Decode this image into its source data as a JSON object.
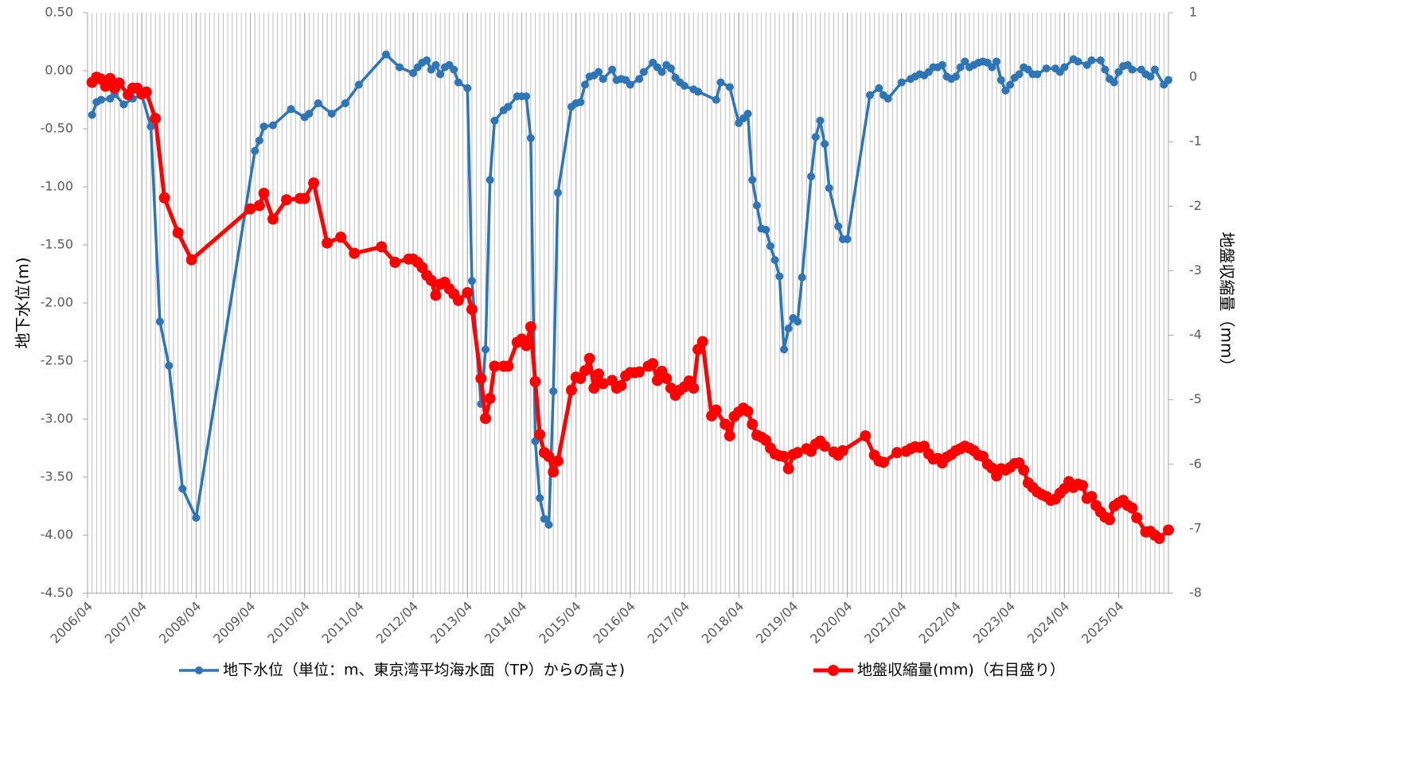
{
  "chart_data": {
    "type": "line",
    "y_label": "地下水位(m)",
    "y2_label": "地盤収縮量（mm）",
    "xlim": [
      "2006/04",
      "2026/03"
    ],
    "xticks": [
      "2006/04",
      "2007/04",
      "2008/04",
      "2009/04",
      "2010/04",
      "2011/04",
      "2012/04",
      "2013/04",
      "2014/04",
      "2015/04",
      "2016/04",
      "2017/04",
      "2018/04",
      "2019/04",
      "2020/04",
      "2021/04",
      "2022/04",
      "2023/04",
      "2024/04",
      "2025/04"
    ],
    "ylim": [
      -4.5,
      0.5
    ],
    "yticks": [
      {
        "value": 0.5,
        "label": "0.50"
      },
      {
        "value": 0,
        "label": "0.00"
      },
      {
        "value": -0.5,
        "label": "-0.50"
      },
      {
        "value": -1,
        "label": "-1.00"
      },
      {
        "value": -1.5,
        "label": "-1.50"
      },
      {
        "value": -2,
        "label": "-2.00"
      },
      {
        "value": -2.5,
        "label": "-2.50"
      },
      {
        "value": -3,
        "label": "-3.00"
      },
      {
        "value": -3.5,
        "label": "-3.50"
      },
      {
        "value": -4,
        "label": "-4.00"
      },
      {
        "value": -4.5,
        "label": "-4.50"
      }
    ],
    "y2lim": [
      -8,
      1
    ],
    "y2ticks": [
      1,
      0,
      -1,
      -2,
      -3,
      -4,
      -5,
      -6,
      -7,
      -8
    ],
    "grid": true,
    "legend": "bottom",
    "series": [
      {
        "name": "地下水位（単位：m、東京湾平均海水面（TP）からの高さ)",
        "color": "#2e75b6",
        "x": [
          "2006/05",
          "2006/06",
          "2006/07",
          "2006/09",
          "2006/10",
          "2006/12",
          "2007/02",
          "2007/04",
          "2007/06",
          "2007/08",
          "2007/10",
          "2008/01",
          "2008/04",
          "2009/05",
          "2009/06",
          "2009/07",
          "2009/09",
          "2010/01",
          "2010/04",
          "2010/05",
          "2010/07",
          "2010/10",
          "2011/01",
          "2011/04",
          "2011/10",
          "2012/01",
          "2012/04",
          "2012/05",
          "2012/06",
          "2012/07",
          "2012/08",
          "2012/09",
          "2012/10",
          "2012/11",
          "2012/12",
          "2013/01",
          "2013/02",
          "2013/04",
          "2013/05",
          "2013/07",
          "2013/08",
          "2013/09",
          "2013/10",
          "2013/12",
          "2014/01",
          "2014/03",
          "2014/04",
          "2014/05",
          "2014/06",
          "2014/07",
          "2014/08",
          "2014/09",
          "2014/10",
          "2014/11",
          "2014/12",
          "2015/03",
          "2015/04",
          "2015/05",
          "2015/06",
          "2015/07",
          "2015/08",
          "2015/09",
          "2015/10",
          "2015/12",
          "2016/01",
          "2016/02",
          "2016/03",
          "2016/04",
          "2016/06",
          "2016/07",
          "2016/09",
          "2016/10",
          "2016/11",
          "2016/12",
          "2017/01",
          "2017/02",
          "2017/03",
          "2017/04",
          "2017/06",
          "2017/07",
          "2017/11",
          "2017/12",
          "2018/02",
          "2018/04",
          "2018/05",
          "2018/06",
          "2018/07",
          "2018/08",
          "2018/09",
          "2018/10",
          "2018/11",
          "2018/12",
          "2019/01",
          "2019/02",
          "2019/03",
          "2019/04",
          "2019/05",
          "2019/06",
          "2019/08",
          "2019/09",
          "2019/10",
          "2019/11",
          "2019/12",
          "2020/02",
          "2020/03",
          "2020/04",
          "2020/09",
          "2020/11",
          "2020/12",
          "2021/01",
          "2021/04",
          "2021/06",
          "2021/07",
          "2021/08",
          "2021/09",
          "2021/10",
          "2021/11",
          "2021/12",
          "2022/01",
          "2022/02",
          "2022/03",
          "2022/04",
          "2022/05",
          "2022/06",
          "2022/07",
          "2022/08",
          "2022/09",
          "2022/10",
          "2022/11",
          "2022/12",
          "2023/01",
          "2023/02",
          "2023/03",
          "2023/04",
          "2023/05",
          "2023/06",
          "2023/07",
          "2023/08",
          "2023/09",
          "2023/10",
          "2023/12",
          "2024/02",
          "2024/03",
          "2024/04",
          "2024/06",
          "2024/07",
          "2024/09",
          "2024/10",
          "2024/12",
          "2025/01",
          "2025/02",
          "2025/03",
          "2025/04",
          "2025/05",
          "2025/06",
          "2025/07",
          "2025/09",
          "2025/10",
          "2025/11",
          "2025/12",
          "2026/02",
          "2026/03"
        ],
        "values": [
          -0.38,
          -0.27,
          -0.25,
          -0.24,
          -0.2,
          -0.29,
          -0.24,
          -0.21,
          -0.48,
          -2.16,
          -2.54,
          -3.6,
          -3.85,
          -0.69,
          -0.6,
          -0.48,
          -0.47,
          -0.33,
          -0.4,
          -0.37,
          -0.28,
          -0.37,
          -0.28,
          -0.12,
          0.14,
          0.03,
          -0.02,
          0.03,
          0.07,
          0.09,
          0.01,
          0.05,
          -0.03,
          0.03,
          0.05,
          0.01,
          -0.1,
          -0.15,
          -1.81,
          -2.87,
          -2.4,
          -0.94,
          -0.43,
          -0.34,
          -0.31,
          -0.22,
          -0.22,
          -0.22,
          -0.58,
          -3.19,
          -3.68,
          -3.86,
          -3.91,
          -2.76,
          -1.05,
          -0.31,
          -0.28,
          -0.27,
          -0.12,
          -0.05,
          -0.04,
          -0.01,
          -0.07,
          0.01,
          -0.08,
          -0.07,
          -0.08,
          -0.12,
          -0.07,
          -0.01,
          0.07,
          0.03,
          -0.01,
          0.05,
          0.02,
          -0.06,
          -0.1,
          -0.13,
          -0.16,
          -0.18,
          -0.25,
          -0.1,
          -0.14,
          -0.45,
          -0.41,
          -0.37,
          -0.94,
          -1.16,
          -1.36,
          -1.37,
          -1.51,
          -1.63,
          -1.77,
          -2.4,
          -2.22,
          -2.13,
          -2.16,
          -1.78,
          -0.91,
          -0.57,
          -0.43,
          -0.63,
          -1.01,
          -1.34,
          -1.45,
          -1.45,
          -0.21,
          -0.15,
          -0.21,
          -0.24,
          -0.1,
          -0.07,
          -0.05,
          -0.03,
          -0.04,
          -0.01,
          0.03,
          0.03,
          0.05,
          -0.05,
          -0.07,
          -0.05,
          0.03,
          0.08,
          0.03,
          0.05,
          0.07,
          0.08,
          0.07,
          0.03,
          0.08,
          -0.08,
          -0.17,
          -0.12,
          -0.06,
          -0.03,
          0.03,
          0.01,
          -0.03,
          -0.03,
          0.02,
          0.02,
          -0.01,
          0.03,
          0.1,
          0.08,
          0.05,
          0.09,
          0.09,
          0.01,
          -0.07,
          -0.1,
          -0.01,
          0.04,
          0.05,
          0.01,
          0.01,
          -0.03,
          -0.05,
          0.01,
          -0.12,
          -0.08
        ]
      },
      {
        "name": "地盤収縮量(mm)（右目盛り）",
        "color": "#ff0000",
        "axis": "y2",
        "x": [
          "2006/05",
          "2006/06",
          "2006/07",
          "2006/08",
          "2006/09",
          "2006/10",
          "2006/11",
          "2007/01",
          "2007/02",
          "2007/03",
          "2007/04",
          "2007/05",
          "2007/07",
          "2007/09",
          "2007/12",
          "2008/03",
          "2009/04",
          "2009/06",
          "2009/07",
          "2009/09",
          "2009/12",
          "2010/03",
          "2010/04",
          "2010/06",
          "2010/09",
          "2010/12",
          "2011/03",
          "2011/09",
          "2011/12",
          "2012/03",
          "2012/04",
          "2012/05",
          "2012/06",
          "2012/07",
          "2012/08",
          "2012/09",
          "2012/10",
          "2012/11",
          "2012/12",
          "2013/01",
          "2013/02",
          "2013/04",
          "2013/05",
          "2013/07",
          "2013/08",
          "2013/09",
          "2013/10",
          "2013/12",
          "2014/01",
          "2014/03",
          "2014/04",
          "2014/05",
          "2014/06",
          "2014/07",
          "2014/08",
          "2014/09",
          "2014/10",
          "2014/11",
          "2014/12",
          "2015/03",
          "2015/04",
          "2015/05",
          "2015/06",
          "2015/07",
          "2015/08",
          "2015/09",
          "2015/10",
          "2015/12",
          "2016/01",
          "2016/02",
          "2016/03",
          "2016/04",
          "2016/05",
          "2016/06",
          "2016/08",
          "2016/09",
          "2016/10",
          "2016/11",
          "2016/12",
          "2017/01",
          "2017/02",
          "2017/03",
          "2017/04",
          "2017/05",
          "2017/06",
          "2017/07",
          "2017/08",
          "2017/10",
          "2017/11",
          "2018/01",
          "2018/02",
          "2018/03",
          "2018/04",
          "2018/05",
          "2018/06",
          "2018/07",
          "2018/08",
          "2018/09",
          "2018/10",
          "2018/11",
          "2018/12",
          "2019/01",
          "2019/02",
          "2019/03",
          "2019/04",
          "2019/05",
          "2019/07",
          "2019/08",
          "2019/09",
          "2019/10",
          "2019/11",
          "2020/01",
          "2020/02",
          "2020/03",
          "2020/08",
          "2020/10",
          "2020/11",
          "2020/12",
          "2021/03",
          "2021/05",
          "2021/06",
          "2021/07",
          "2021/08",
          "2021/09",
          "2021/10",
          "2021/11",
          "2021/12",
          "2022/01",
          "2022/02",
          "2022/03",
          "2022/04",
          "2022/05",
          "2022/06",
          "2022/07",
          "2022/08",
          "2022/09",
          "2022/10",
          "2022/11",
          "2022/12",
          "2023/01",
          "2023/02",
          "2023/03",
          "2023/04",
          "2023/05",
          "2023/06",
          "2023/07",
          "2023/08",
          "2023/09",
          "2023/10",
          "2023/11",
          "2023/12",
          "2024/01",
          "2024/02",
          "2024/03",
          "2024/04",
          "2024/05",
          "2024/06",
          "2024/07",
          "2024/08",
          "2024/09",
          "2024/10",
          "2024/11",
          "2024/12",
          "2025/01",
          "2025/02",
          "2025/03",
          "2025/04",
          "2025/05",
          "2025/06",
          "2025/07",
          "2025/08",
          "2025/10",
          "2025/11",
          "2025/12",
          "2026/01",
          "2026/03"
        ],
        "values": [
          -0.08,
          0.0,
          -0.03,
          -0.14,
          -0.02,
          -0.17,
          -0.09,
          -0.27,
          -0.17,
          -0.17,
          -0.26,
          -0.23,
          -0.64,
          -1.87,
          -2.41,
          -2.83,
          -2.04,
          -1.99,
          -1.8,
          -2.2,
          -1.9,
          -1.88,
          -1.88,
          -1.64,
          -2.57,
          -2.48,
          -2.73,
          -2.63,
          -2.87,
          -2.82,
          -2.82,
          -2.87,
          -2.95,
          -3.07,
          -3.15,
          -3.38,
          -3.21,
          -3.18,
          -3.28,
          -3.36,
          -3.46,
          -3.34,
          -3.6,
          -4.67,
          -5.29,
          -4.98,
          -4.48,
          -4.48,
          -4.48,
          -4.11,
          -4.06,
          -4.16,
          -3.87,
          -4.72,
          -5.54,
          -5.82,
          -5.88,
          -6.12,
          -5.95,
          -4.85,
          -4.65,
          -4.67,
          -4.55,
          -4.36,
          -4.82,
          -4.6,
          -4.75,
          -4.7,
          -4.82,
          -4.78,
          -4.63,
          -4.58,
          -4.58,
          -4.57,
          -4.48,
          -4.44,
          -4.7,
          -4.56,
          -4.67,
          -4.82,
          -4.93,
          -4.85,
          -4.8,
          -4.71,
          -4.82,
          -4.22,
          -4.1,
          -5.25,
          -5.16,
          -5.38,
          -5.56,
          -5.26,
          -5.19,
          -5.13,
          -5.18,
          -5.38,
          -5.55,
          -5.58,
          -5.63,
          -5.75,
          -5.84,
          -5.87,
          -5.88,
          -6.07,
          -5.85,
          -5.82,
          -5.76,
          -5.8,
          -5.69,
          -5.64,
          -5.72,
          -5.81,
          -5.86,
          -5.79,
          -5.56,
          -5.86,
          -5.95,
          -5.97,
          -5.82,
          -5.8,
          -5.76,
          -5.73,
          -5.74,
          -5.72,
          -5.84,
          -5.92,
          -5.91,
          -5.98,
          -5.89,
          -5.85,
          -5.79,
          -5.76,
          -5.72,
          -5.75,
          -5.79,
          -5.86,
          -5.88,
          -6.0,
          -6.06,
          -6.18,
          -6.07,
          -6.09,
          -6.05,
          -5.99,
          -5.98,
          -6.09,
          -6.29,
          -6.36,
          -6.43,
          -6.47,
          -6.5,
          -6.56,
          -6.54,
          -6.45,
          -6.38,
          -6.27,
          -6.36,
          -6.31,
          -6.33,
          -6.53,
          -6.5,
          -6.64,
          -6.74,
          -6.82,
          -6.86,
          -6.65,
          -6.6,
          -6.56,
          -6.64,
          -6.68,
          -6.83,
          -7.05,
          -7.04,
          -7.1,
          -7.15,
          -7.02
        ]
      }
    ]
  }
}
